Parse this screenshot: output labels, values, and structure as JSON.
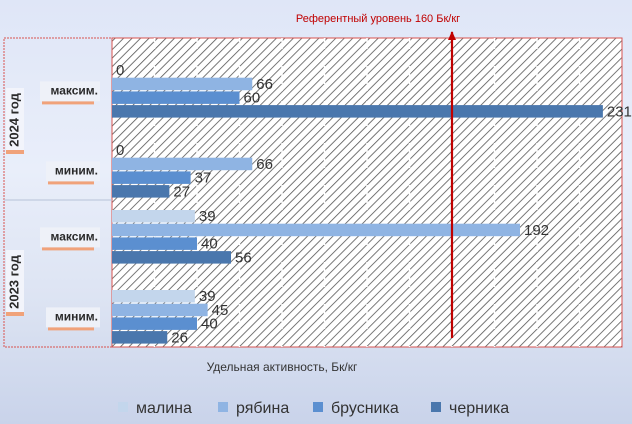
{
  "chart_data": {
    "type": "bar",
    "orientation": "horizontal",
    "title": "",
    "xlabel": "Удельная активность, Бк/кг",
    "ylabel": "",
    "xlim": [
      0,
      240
    ],
    "grid": true,
    "legend_position": "bottom",
    "reference_line": {
      "value": 160,
      "label": "Референтный уровень 160 Бк/кг",
      "color": "#c00000"
    },
    "groups": [
      {
        "label": "2024 год",
        "categories": [
          {
            "label": "максим.",
            "values": [
              0,
              66,
              60,
              231
            ]
          },
          {
            "label": "миним.",
            "values": [
              0,
              66,
              37,
              27
            ]
          }
        ]
      },
      {
        "label": "2023 год",
        "categories": [
          {
            "label": "максим.",
            "values": [
              39,
              192,
              40,
              56
            ]
          },
          {
            "label": "миним.",
            "values": [
              39,
              45,
              40,
              26
            ]
          }
        ]
      }
    ],
    "series": [
      {
        "name": "малина",
        "color": "#c3d6ec"
      },
      {
        "name": "рябина",
        "color": "#8fb4e3"
      },
      {
        "name": "брусника",
        "color": "#5b8fd0"
      },
      {
        "name": "черника",
        "color": "#4a77ad"
      }
    ]
  }
}
